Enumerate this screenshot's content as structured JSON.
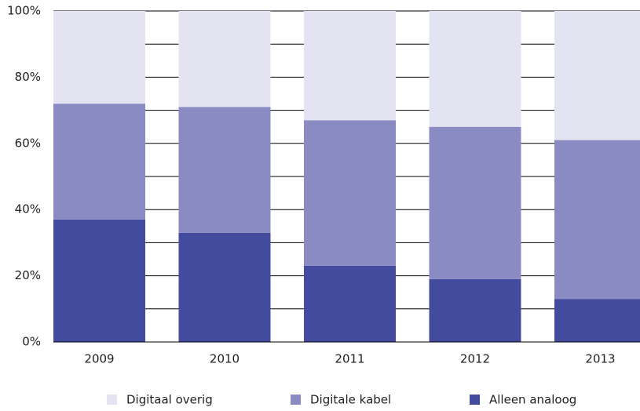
{
  "chart_data": {
    "type": "stacked_bar",
    "categories": [
      "2009",
      "2010",
      "2011",
      "2012",
      "2013"
    ],
    "series": [
      {
        "name": "Digitaal overig",
        "color": "#e3e3f1",
        "values": [
          28,
          29,
          33,
          35,
          39
        ]
      },
      {
        "name": "Digitale kabel",
        "color": "#8b8bc4",
        "values": [
          35,
          38,
          44,
          46,
          48
        ]
      },
      {
        "name": "Alleen analoog",
        "color": "#434b9f",
        "values": [
          37,
          33,
          23,
          19,
          13
        ]
      }
    ],
    "ylim": [
      0,
      100
    ],
    "yticks": [
      {
        "value": 0,
        "label": "0%"
      },
      {
        "value": 20,
        "label": "20%"
      },
      {
        "value": 40,
        "label": "40%"
      },
      {
        "value": 60,
        "label": "60%"
      },
      {
        "value": 80,
        "label": "80%"
      },
      {
        "value": 100,
        "label": "100%"
      }
    ],
    "grid_lines": [
      0,
      10,
      20,
      30,
      40,
      50,
      60,
      70,
      80,
      90,
      100
    ],
    "grid": true,
    "legend": "bottom"
  }
}
